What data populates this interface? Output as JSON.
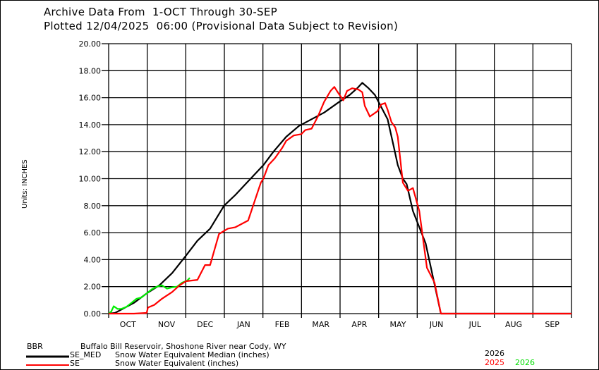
{
  "header": {
    "line1": "Archive Data From  1-OCT Through 30-SEP",
    "line2": "Plotted 12/04/2025  06:00 (Provisional Data Subject to Revision)"
  },
  "colors": {
    "median": "#000000",
    "se_2025": "#ff0000",
    "se_2026": "#00ee00",
    "grid": "#000000"
  },
  "legend": {
    "station_code": "BBR",
    "station_name": "Buffalo Bill Reservoir, Shoshone River near Cody, WY",
    "median_code": "SE_MED",
    "median_desc": "Snow Water Equivalent Median (inches)",
    "se_code": "SE",
    "se_desc": "Snow Water Equivalent (inches)",
    "median_year": "2026",
    "se_year_red": "2025",
    "se_year_green": "2026"
  },
  "chart_data": {
    "type": "line",
    "title": "Archive Data From 1-OCT Through 30-SEP",
    "subtitle": "Plotted 12/04/2025 06:00 (Provisional Data Subject to Revision)",
    "xlabel": "",
    "ylabel": "Units: INCHES",
    "ylim": [
      0,
      20
    ],
    "xlim_days": [
      0,
      365
    ],
    "grid": true,
    "legend_position": "bottom",
    "y_ticks": [
      "0.00",
      "2.00",
      "4.00",
      "6.00",
      "8.00",
      "10.00",
      "12.00",
      "14.00",
      "16.00",
      "18.00",
      "20.00"
    ],
    "categories": [
      "OCT",
      "NOV",
      "DEC",
      "JAN",
      "FEB",
      "MAR",
      "APR",
      "MAY",
      "JUN",
      "JUL",
      "AUG",
      "SEP"
    ],
    "series": [
      {
        "name": "SE_MED 2026 (Median)",
        "color": "#000000",
        "x_day": [
          0,
          5,
          10,
          20,
          30,
          40,
          50,
          61,
          70,
          80,
          91,
          100,
          110,
          122,
          130,
          140,
          150,
          160,
          170,
          182,
          190,
          196,
          200,
          205,
          210,
          215,
          220,
          225,
          228,
          232,
          235,
          240,
          245,
          250,
          256,
          262,
          275,
          300,
          330,
          365
        ],
        "values": [
          0.0,
          0.05,
          0.3,
          0.8,
          1.5,
          2.1,
          3.0,
          4.3,
          5.4,
          6.3,
          8.0,
          8.8,
          9.8,
          11.0,
          12.0,
          13.1,
          13.9,
          14.4,
          14.9,
          15.7,
          16.2,
          16.7,
          17.1,
          16.7,
          16.2,
          15.3,
          14.4,
          12.3,
          11.0,
          10.0,
          9.6,
          7.6,
          6.4,
          5.2,
          2.6,
          0.0,
          0.0,
          0.0,
          0.0,
          0.0
        ]
      },
      {
        "name": "SE 2025",
        "color": "#ff0000",
        "x_day": [
          0,
          20,
          30,
          31,
          36,
          42,
          50,
          56,
          61,
          70,
          76,
          80,
          87,
          94,
          100,
          110,
          120,
          122,
          126,
          131,
          137,
          140,
          146,
          152,
          155,
          160,
          165,
          170,
          175,
          178,
          180,
          185,
          188,
          192,
          197,
          200,
          202,
          206,
          212,
          215,
          218,
          220,
          223,
          226,
          228,
          232,
          236,
          240,
          245,
          251,
          257,
          262,
          300,
          330,
          365
        ],
        "values": [
          0.0,
          0.0,
          0.05,
          0.45,
          0.65,
          1.1,
          1.6,
          2.1,
          2.4,
          2.5,
          3.6,
          3.6,
          5.9,
          6.3,
          6.4,
          6.9,
          9.7,
          10.0,
          11.0,
          11.5,
          12.3,
          12.8,
          13.2,
          13.3,
          13.6,
          13.7,
          14.6,
          15.7,
          16.5,
          16.8,
          16.5,
          15.8,
          16.5,
          16.7,
          16.6,
          16.4,
          15.4,
          14.6,
          15.0,
          15.5,
          15.6,
          15.1,
          14.2,
          13.8,
          13.1,
          9.7,
          9.1,
          9.3,
          7.6,
          3.4,
          2.3,
          0.0,
          0.0,
          0.0,
          0.0
        ]
      },
      {
        "name": "SE 2026",
        "color": "#00ee00",
        "x_day": [
          0,
          2,
          4,
          7,
          10,
          14,
          18,
          22,
          26,
          30,
          34,
          38,
          42,
          46,
          50,
          54,
          58,
          62,
          64
        ],
        "values": [
          0.0,
          0.15,
          0.55,
          0.35,
          0.35,
          0.5,
          0.8,
          1.1,
          1.2,
          1.5,
          1.8,
          2.0,
          2.1,
          1.85,
          1.95,
          2.0,
          2.3,
          2.45,
          2.65
        ]
      }
    ]
  }
}
